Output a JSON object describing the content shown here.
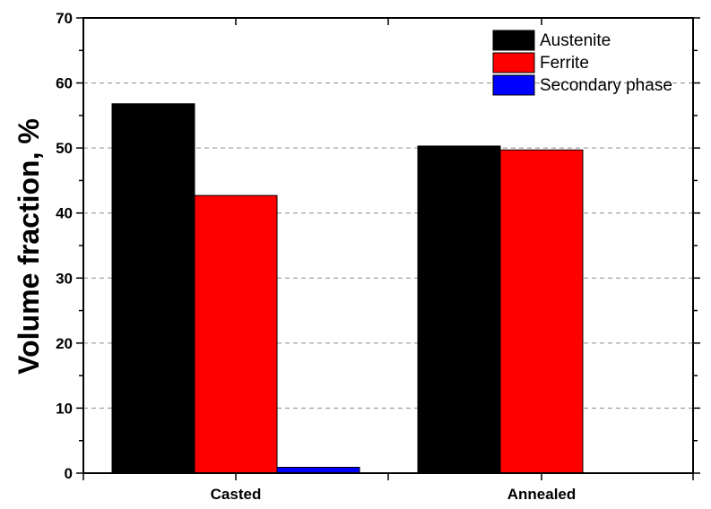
{
  "chart_data": {
    "type": "bar",
    "title": "",
    "xlabel": "",
    "ylabel": "Volume fraction, %",
    "ylim": [
      0,
      70
    ],
    "yticks": [
      0,
      10,
      20,
      30,
      40,
      50,
      60,
      70
    ],
    "categories": [
      "Casted",
      "Annealed"
    ],
    "series": [
      {
        "name": "Austenite",
        "color": "#000000",
        "values": [
          56.8,
          50.3
        ]
      },
      {
        "name": "Ferrite",
        "color": "#ff0000",
        "values": [
          42.7,
          49.7
        ]
      },
      {
        "name": "Secondary phase",
        "color": "#0000ff",
        "values": [
          0.9,
          null
        ]
      }
    ],
    "grid": "horizontal dashed",
    "legend_position": "top-right"
  }
}
